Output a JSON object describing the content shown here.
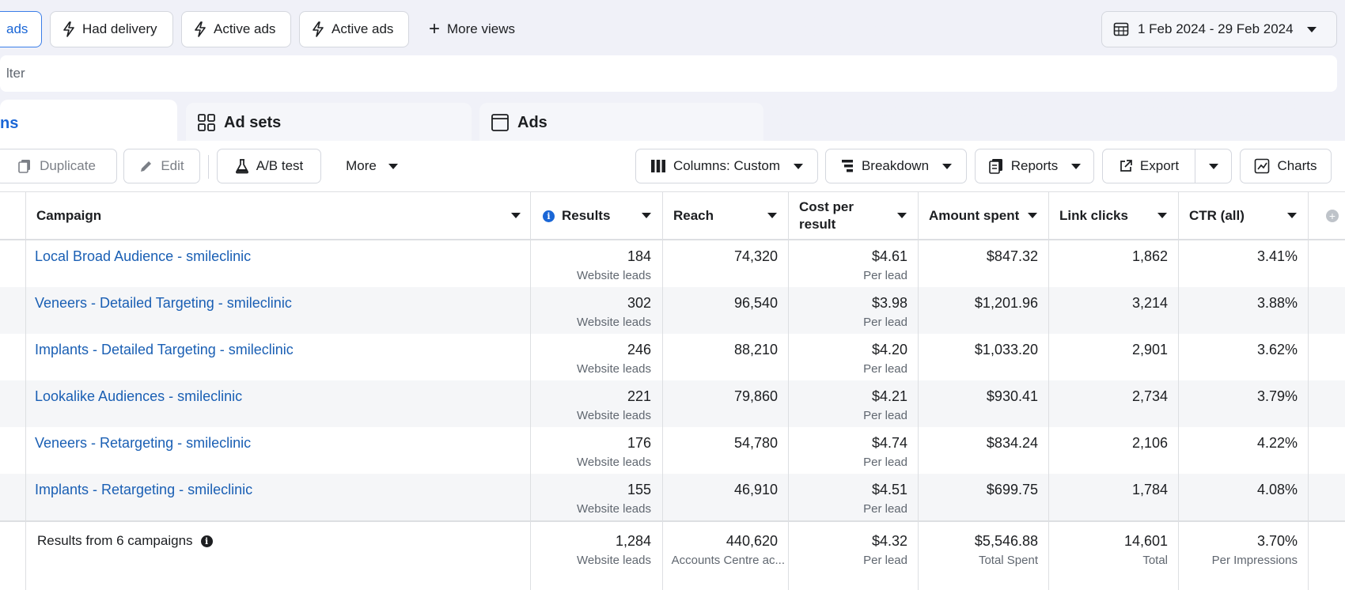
{
  "filters": {
    "pills": [
      {
        "label": "ads",
        "active": true
      },
      {
        "label": "Had delivery"
      },
      {
        "label": "Active ads"
      },
      {
        "label": "Active ads"
      }
    ],
    "more_views": "More views",
    "date_range": "1 Feb 2024 - 29 Feb 2024",
    "search_placeholder": "lter"
  },
  "tabs": {
    "campaigns": "ns",
    "adsets": "Ad sets",
    "ads": "Ads"
  },
  "toolbar": {
    "duplicate": "Duplicate",
    "edit": "Edit",
    "ab_test": "A/B test",
    "more": "More",
    "columns": "Columns: Custom",
    "breakdown": "Breakdown",
    "reports": "Reports",
    "export": "Export",
    "charts": "Charts"
  },
  "table": {
    "headers": {
      "campaign": "Campaign",
      "results": "Results",
      "reach": "Reach",
      "cost_line1": "Cost per",
      "cost_line2": "result",
      "amount": "Amount spent",
      "link_clicks": "Link clicks",
      "ctr": "CTR (all)"
    },
    "rows": [
      {
        "name": "Local Broad Audience - smileclinic",
        "results": "184",
        "results_sub": "Website leads",
        "reach": "74,320",
        "cost": "$4.61",
        "cost_sub": "Per lead",
        "amount": "$847.32",
        "clicks": "1,862",
        "ctr": "3.41%"
      },
      {
        "name": "Veneers - Detailed Targeting - smileclinic",
        "results": "302",
        "results_sub": "Website leads",
        "reach": "96,540",
        "cost": "$3.98",
        "cost_sub": "Per lead",
        "amount": "$1,201.96",
        "clicks": "3,214",
        "ctr": "3.88%"
      },
      {
        "name": "Implants - Detailed Targeting - smileclinic",
        "results": "246",
        "results_sub": "Website leads",
        "reach": "88,210",
        "cost": "$4.20",
        "cost_sub": "Per lead",
        "amount": "$1,033.20",
        "clicks": "2,901",
        "ctr": "3.62%"
      },
      {
        "name": "Lookalike Audiences - smileclinic",
        "results": "221",
        "results_sub": "Website leads",
        "reach": "79,860",
        "cost": "$4.21",
        "cost_sub": "Per lead",
        "amount": "$930.41",
        "clicks": "2,734",
        "ctr": "3.79%"
      },
      {
        "name": "Veneers - Retargeting - smileclinic",
        "results": "176",
        "results_sub": "Website leads",
        "reach": "54,780",
        "cost": "$4.74",
        "cost_sub": "Per lead",
        "amount": "$834.24",
        "clicks": "2,106",
        "ctr": "4.22%"
      },
      {
        "name": "Implants - Retargeting - smileclinic",
        "results": "155",
        "results_sub": "Website leads",
        "reach": "46,910",
        "cost": "$4.51",
        "cost_sub": "Per lead",
        "amount": "$699.75",
        "clicks": "1,784",
        "ctr": "4.08%"
      }
    ],
    "summary": {
      "label": "Results from 6 campaigns",
      "results": "1,284",
      "results_sub": "Website leads",
      "reach": "440,620",
      "reach_sub": "Accounts Centre ac...",
      "cost": "$4.32",
      "cost_sub": "Per lead",
      "amount": "$5,546.88",
      "amount_sub": "Total Spent",
      "clicks": "14,601",
      "clicks_sub": "Total",
      "ctr": "3.70%",
      "ctr_sub": "Per Impressions"
    }
  },
  "colors": {
    "link": "#1a5fb4",
    "accent": "#1a66d6"
  }
}
